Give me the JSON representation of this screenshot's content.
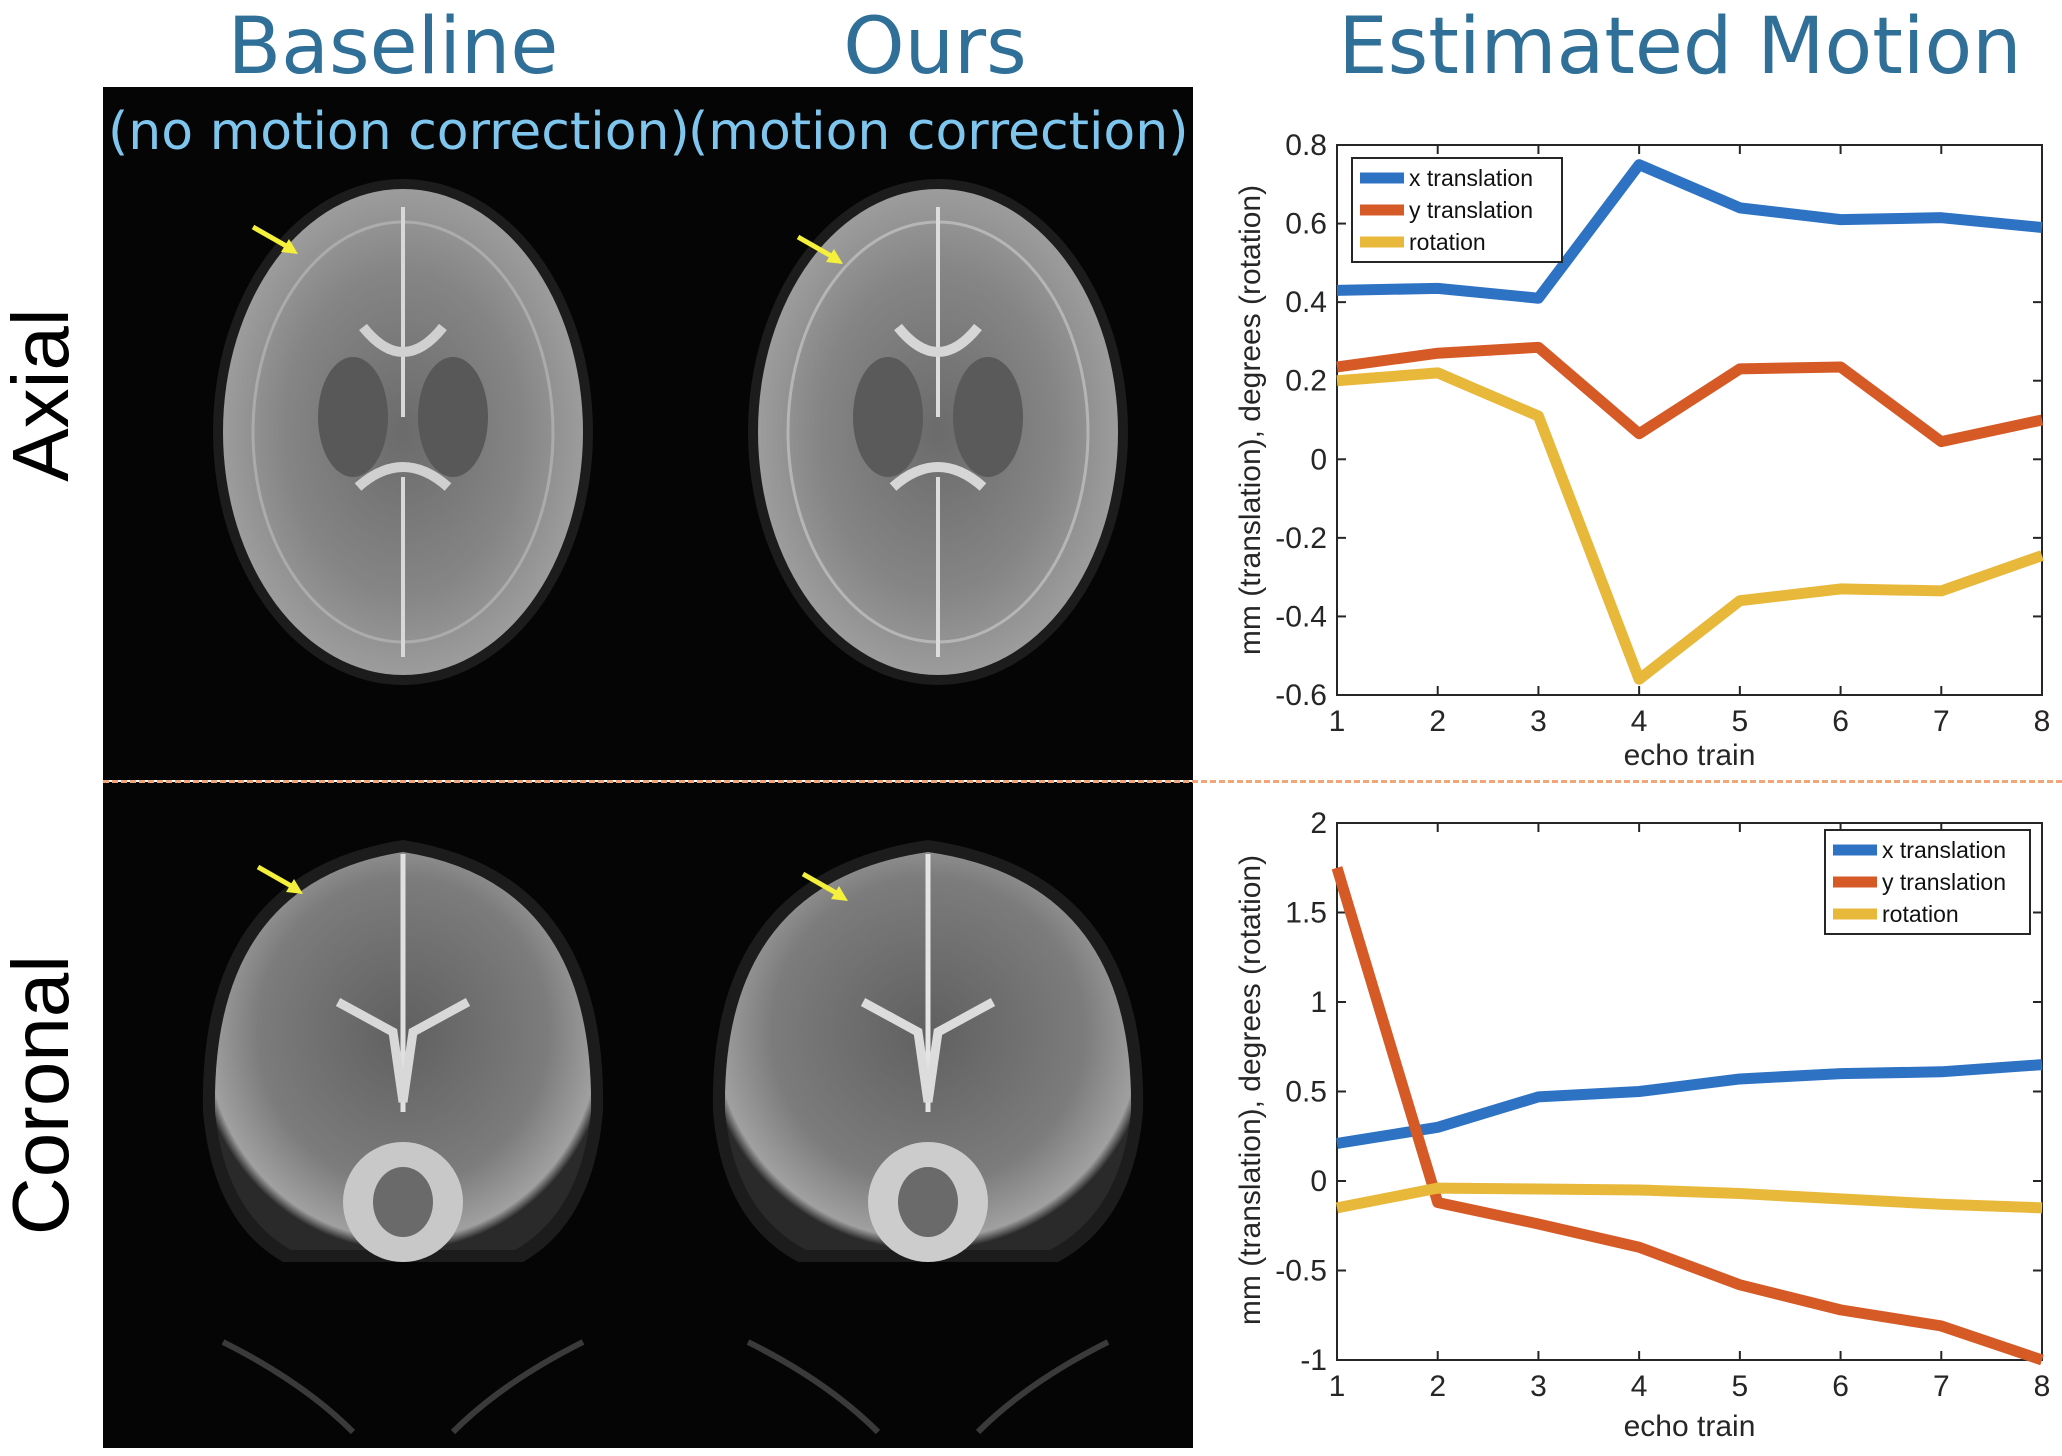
{
  "headers": {
    "baseline": "Baseline",
    "ours": "Ours",
    "estimated_motion": "Estimated Motion",
    "baseline_sub": "(no motion correction)",
    "ours_sub": "(motion correction)"
  },
  "rows": {
    "axial": "Axial",
    "coronal": "Coronal"
  },
  "colors": {
    "x": "#2e72c4",
    "y": "#d55a25",
    "rot": "#e8b83a",
    "header": "#2f6f98",
    "subheader": "#7fc6ef",
    "arrow": "#f4f03c",
    "divider": "#f0a57a"
  },
  "chart_data": [
    {
      "type": "line",
      "name": "axial",
      "xlabel": "echo train",
      "ylabel": "mm (translation),  degrees (rotation)",
      "xlim": [
        1,
        8
      ],
      "ylim": [
        -0.6,
        0.8
      ],
      "xticks": [
        1,
        2,
        3,
        4,
        5,
        6,
        7,
        8
      ],
      "yticks": [
        -0.6,
        -0.4,
        -0.2,
        0,
        0.2,
        0.4,
        0.6,
        0.8
      ],
      "ytick_labels": [
        "-0.6",
        "-0.4",
        "-0.2",
        "0",
        "0.2",
        "0.4",
        "0.6",
        "0.8"
      ],
      "legend": "top-left",
      "x": [
        1,
        2,
        3,
        4,
        5,
        6,
        7,
        8
      ],
      "series": [
        {
          "name": "x translation",
          "key": "x",
          "values": [
            0.43,
            0.435,
            0.41,
            0.75,
            0.64,
            0.61,
            0.615,
            0.59
          ]
        },
        {
          "name": "y translation",
          "key": "y",
          "values": [
            0.235,
            0.27,
            0.285,
            0.065,
            0.23,
            0.235,
            0.045,
            0.1
          ]
        },
        {
          "name": "rotation",
          "key": "rot",
          "values": [
            0.2,
            0.22,
            0.11,
            -0.56,
            -0.36,
            -0.33,
            -0.335,
            -0.245
          ]
        }
      ]
    },
    {
      "type": "line",
      "name": "coronal",
      "xlabel": "echo train",
      "ylabel": "mm (translation),  degrees (rotation)",
      "xlim": [
        1,
        8
      ],
      "ylim": [
        -1,
        2
      ],
      "xticks": [
        1,
        2,
        3,
        4,
        5,
        6,
        7,
        8
      ],
      "yticks": [
        -1,
        -0.5,
        0,
        0.5,
        1,
        1.5,
        2
      ],
      "ytick_labels": [
        "-1",
        "-0.5",
        "0",
        "0.5",
        "1",
        "1.5",
        "2"
      ],
      "legend": "top-right",
      "x": [
        1,
        2,
        3,
        4,
        5,
        6,
        7,
        8
      ],
      "series": [
        {
          "name": "x translation",
          "key": "x",
          "values": [
            0.21,
            0.3,
            0.47,
            0.5,
            0.57,
            0.6,
            0.61,
            0.65
          ]
        },
        {
          "name": "y translation",
          "key": "y",
          "values": [
            1.75,
            -0.12,
            -0.24,
            -0.37,
            -0.58,
            -0.72,
            -0.81,
            -1.0
          ]
        },
        {
          "name": "rotation",
          "key": "rot",
          "values": [
            -0.15,
            -0.04,
            -0.045,
            -0.05,
            -0.07,
            -0.1,
            -0.13,
            -0.15
          ]
        }
      ]
    }
  ]
}
